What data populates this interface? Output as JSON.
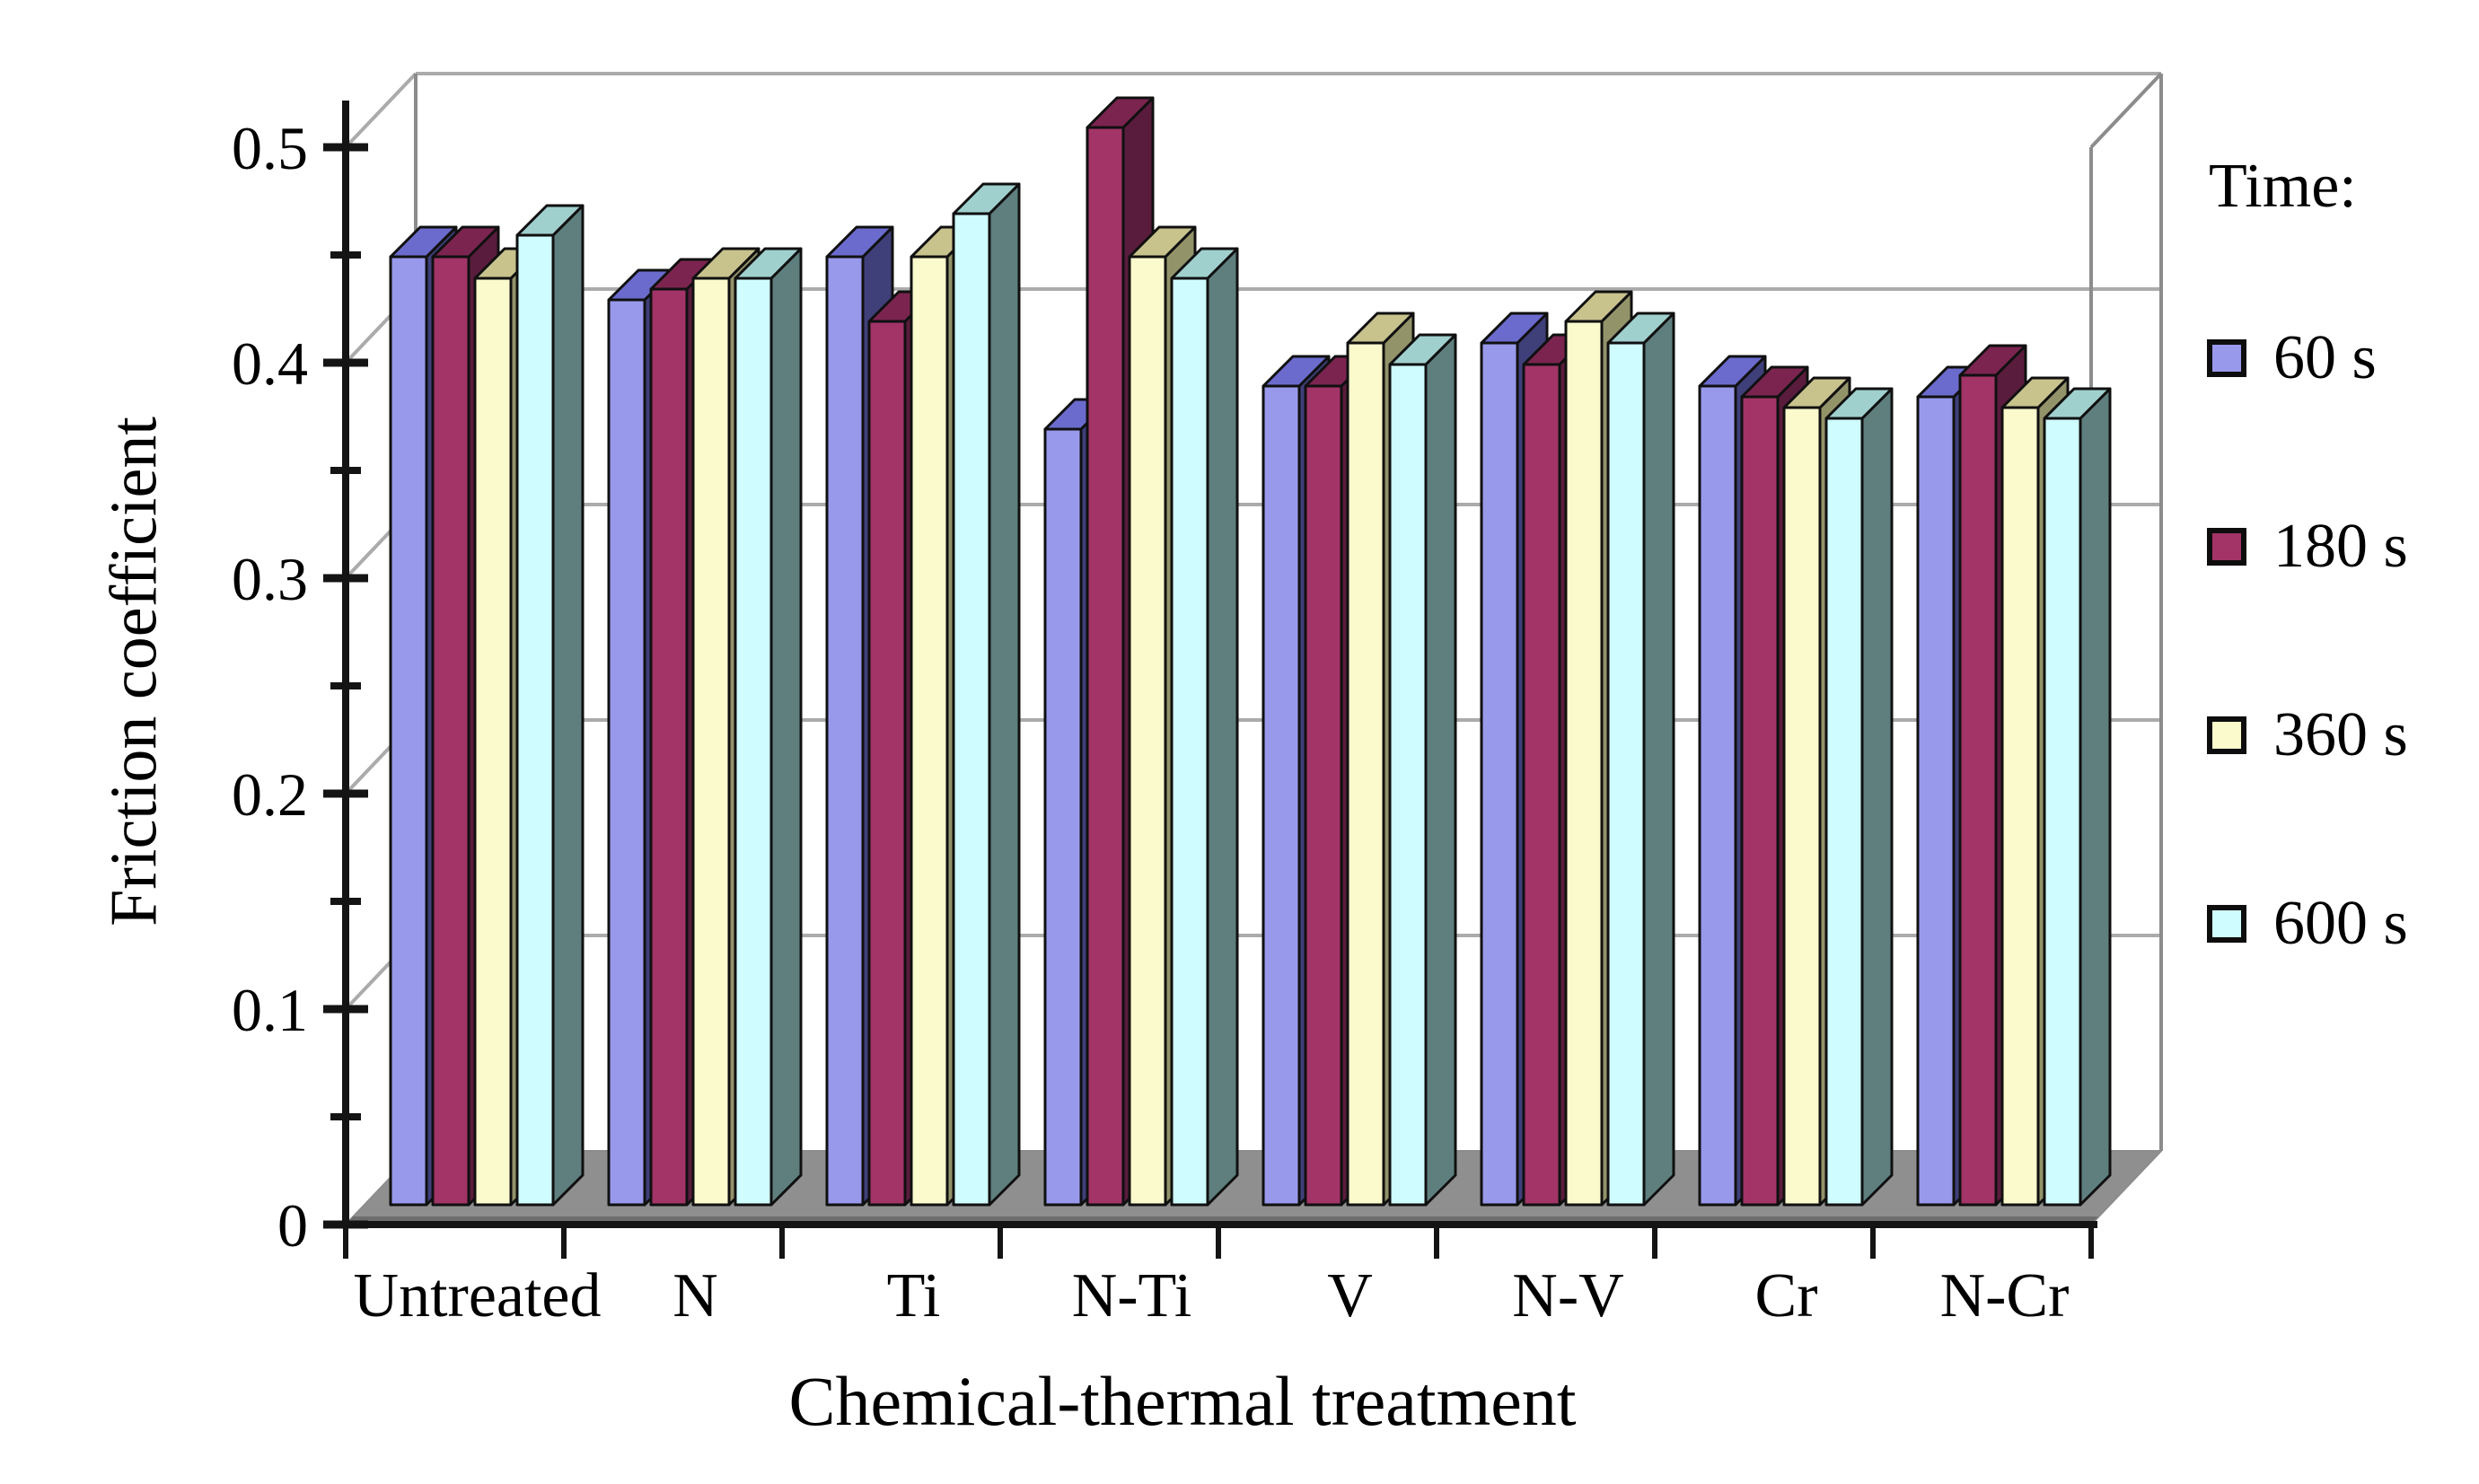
{
  "chart_data": {
    "type": "bar",
    "projection": "3d",
    "title": "",
    "xlabel": "Chemical-thermal treatment",
    "ylabel": "Friction coefficient",
    "legend_title": "Time:",
    "legend_position": "right",
    "categories": [
      "Untreated",
      "N",
      "Ti",
      "N-Ti",
      "V",
      "N-V",
      "Cr",
      "N-Cr"
    ],
    "series": [
      {
        "name": "60 s",
        "color": "#9999EC",
        "top_color": "#6B6BCE",
        "side_color": "#3F3F7A",
        "values": [
          0.44,
          0.42,
          0.44,
          0.36,
          0.38,
          0.4,
          0.38,
          0.375
        ]
      },
      {
        "name": "180 s",
        "color": "#A23467",
        "top_color": "#7C2450",
        "side_color": "#5A1C3C",
        "values": [
          0.44,
          0.425,
          0.41,
          0.5,
          0.38,
          0.39,
          0.375,
          0.385
        ]
      },
      {
        "name": "360 s",
        "color": "#FBFACD",
        "top_color": "#C8C28D",
        "side_color": "#93936A",
        "values": [
          0.43,
          0.43,
          0.44,
          0.44,
          0.4,
          0.41,
          0.37,
          0.37
        ]
      },
      {
        "name": "600 s",
        "color": "#CFFDFF",
        "top_color": "#A0D0CE",
        "side_color": "#5E7F7E",
        "values": [
          0.45,
          0.43,
          0.46,
          0.43,
          0.39,
          0.4,
          0.365,
          0.365
        ]
      }
    ],
    "ylim": [
      0,
      0.5
    ],
    "ytick_step": 0.1,
    "ytick_labels": [
      "0",
      "0.1",
      "0.2",
      "0.3",
      "0.4",
      "0.5"
    ],
    "yminor_step": 0.05,
    "grid": true
  },
  "colors": {
    "background": "#FFFFFF",
    "text": "#000000",
    "axis": "#141414",
    "bar_outline": "#101010",
    "wall_edge": "#8C8C8C",
    "gridline": "#ABABAB",
    "floor": "#8F8F8F",
    "floor_front_edge": "#6E6E6E"
  }
}
